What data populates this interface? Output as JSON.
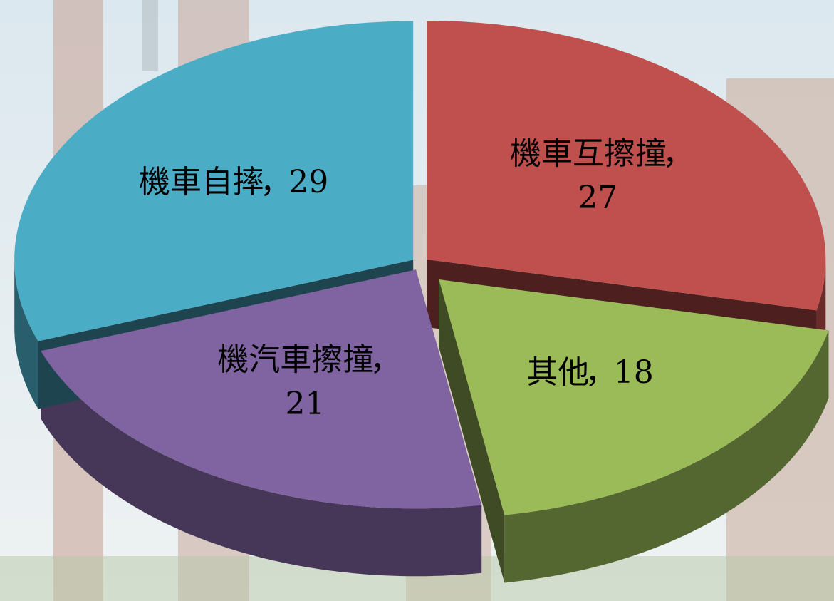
{
  "chart_data": {
    "type": "pie3d",
    "categories": [
      "機車互擦撞",
      "其他",
      "機汽車擦撞",
      "機車自摔"
    ],
    "values": [
      27,
      18,
      21,
      29
    ],
    "colors": [
      "#c0504d",
      "#9bbb59",
      "#8064a2",
      "#4bacc6"
    ],
    "label_separator": "，"
  }
}
